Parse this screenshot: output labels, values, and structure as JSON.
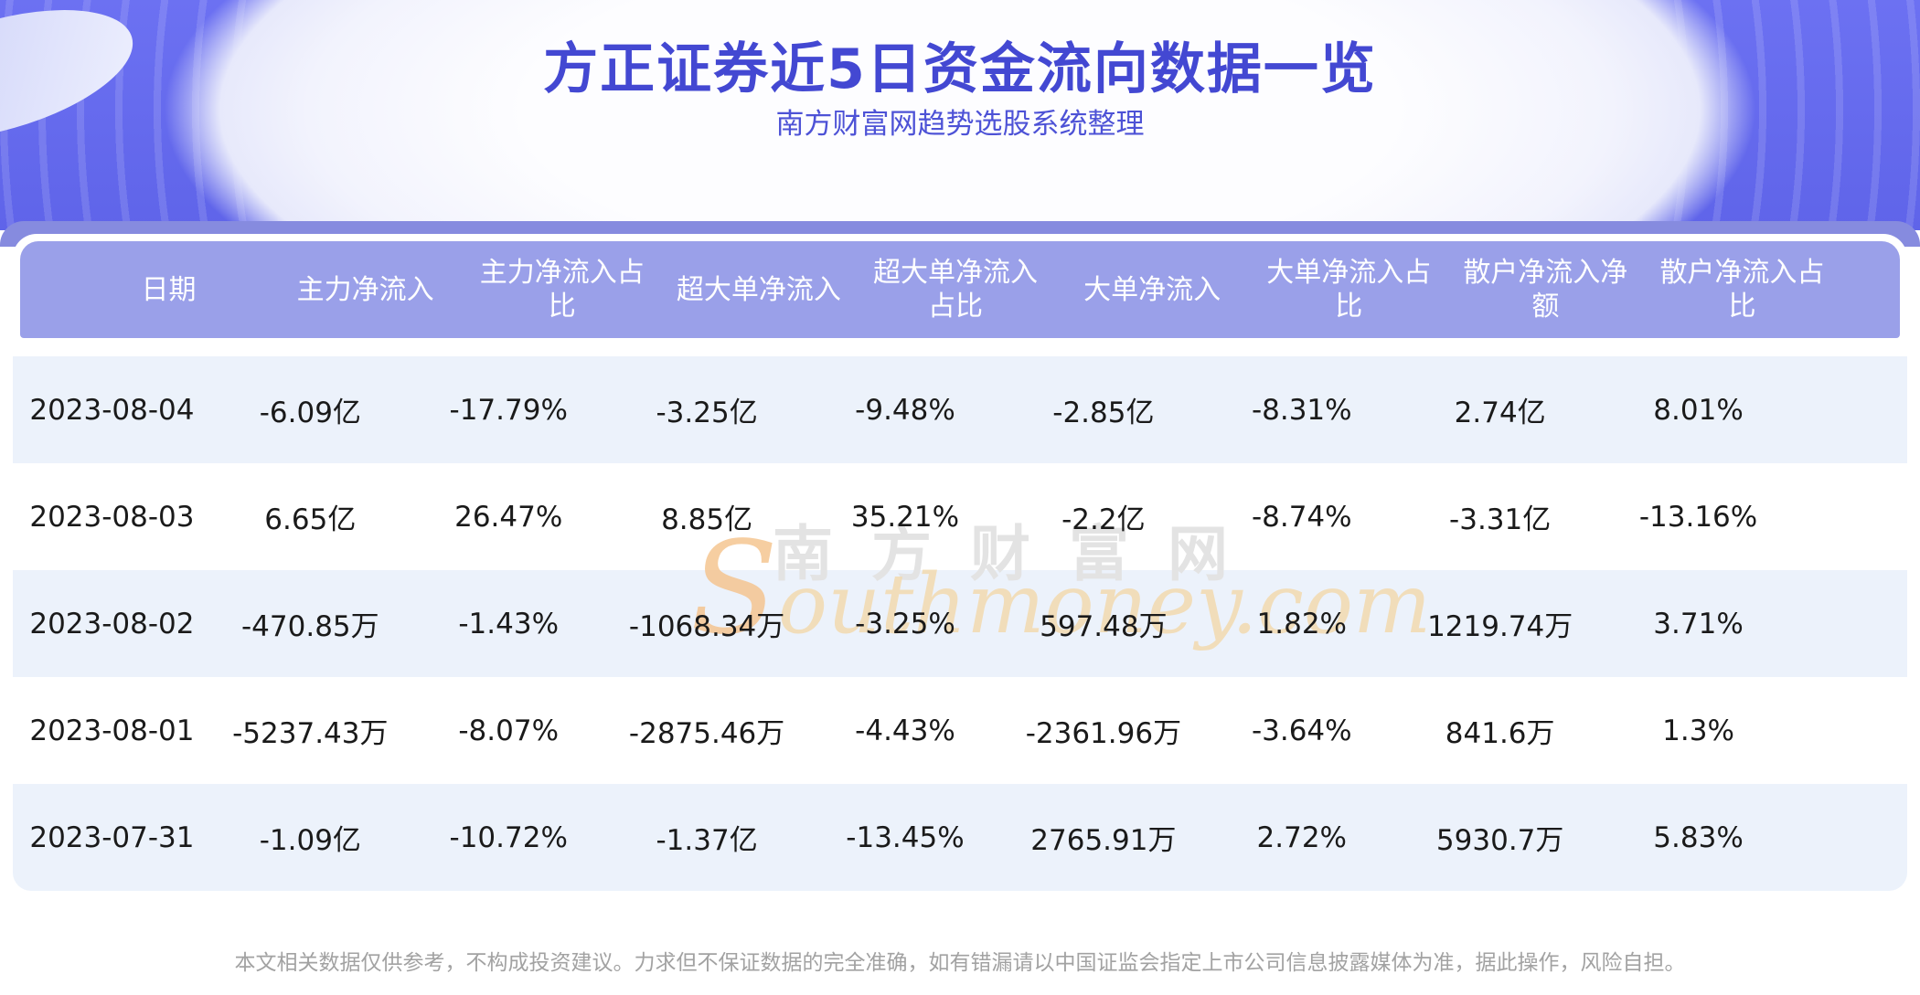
{
  "page": {
    "title": "方正证券近5日资金流向数据一览",
    "subtitle": "南方财富网趋势选股系统整理",
    "disclaimer": "本文相关数据仅供参考，不构成投资建议。力求但不保证数据的完全准确，如有错漏请以中国证监会指定上市公司信息披露媒体为准，据此操作，风险自担。"
  },
  "watermark": {
    "brand_cn": "南方财富网",
    "brand_en": "Southmoney.com"
  },
  "table": {
    "columns": [
      "日期",
      "主力净流入",
      "主力净流入占比",
      "超大单净流入",
      "超大单净流入占比",
      "大单净流入",
      "大单净流入占比",
      "散户净流入净额",
      "散户净流入占比"
    ],
    "rows": [
      [
        "2023-08-04",
        "-6.09亿",
        "-17.79%",
        "-3.25亿",
        "-9.48%",
        "-2.85亿",
        "-8.31%",
        "2.74亿",
        "8.01%"
      ],
      [
        "2023-08-03",
        "6.65亿",
        "26.47%",
        "8.85亿",
        "35.21%",
        "-2.2亿",
        "-8.74%",
        "-3.31亿",
        "-13.16%"
      ],
      [
        "2023-08-02",
        "-470.85万",
        "-1.43%",
        "-1068.34万",
        "-3.25%",
        "597.48万",
        "1.82%",
        "1219.74万",
        "3.71%"
      ],
      [
        "2023-08-01",
        "-5237.43万",
        "-8.07%",
        "-2875.46万",
        "-4.43%",
        "-2361.96万",
        "-3.64%",
        "841.6万",
        "1.3%"
      ],
      [
        "2023-07-31",
        "-1.09亿",
        "-10.72%",
        "-1.37亿",
        "-13.45%",
        "2765.91万",
        "2.72%",
        "5930.7万",
        "5.83%"
      ]
    ]
  },
  "chart_data": {
    "type": "table",
    "title": "方正证券近5日资金流向数据一览",
    "subtitle": "南方财富网趋势选股系统整理",
    "columns": [
      "日期",
      "主力净流入",
      "主力净流入占比",
      "超大单净流入",
      "超大单净流入占比",
      "大单净流入",
      "大单净流入占比",
      "散户净流入净额",
      "散户净流入占比"
    ],
    "rows": [
      [
        "2023-08-04",
        "-6.09亿",
        "-17.79%",
        "-3.25亿",
        "-9.48%",
        "-2.85亿",
        "-8.31%",
        "2.74亿",
        "8.01%"
      ],
      [
        "2023-08-03",
        "6.65亿",
        "26.47%",
        "8.85亿",
        "35.21%",
        "-2.2亿",
        "-8.74%",
        "-3.31亿",
        "-13.16%"
      ],
      [
        "2023-08-02",
        "-470.85万",
        "-1.43%",
        "-1068.34万",
        "-3.25%",
        "597.48万",
        "1.82%",
        "1219.74万",
        "3.71%"
      ],
      [
        "2023-08-01",
        "-5237.43万",
        "-8.07%",
        "-2875.46万",
        "-4.43%",
        "-2361.96万",
        "-3.64%",
        "841.6万",
        "1.3%"
      ],
      [
        "2023-07-31",
        "-1.09亿",
        "-10.72%",
        "-1.37亿",
        "-13.45%",
        "2765.91万",
        "2.72%",
        "5930.7万",
        "5.83%"
      ]
    ]
  },
  "colors": {
    "hero_background": "#6468ee",
    "band": "#868bdf",
    "header_background": "#9aa0e9",
    "header_text": "#ffffff",
    "row_alternate": "#ecf2fb",
    "body_text": "#1a1a1a",
    "title_text": "#4348d2",
    "subtitle_text": "#4d52d6",
    "disclaimer_text": "#a2a2a2",
    "watermark_tan": "#f3d9ab",
    "watermark_orange": "#f5c28a",
    "watermark_gray": "#e3e3e3"
  }
}
